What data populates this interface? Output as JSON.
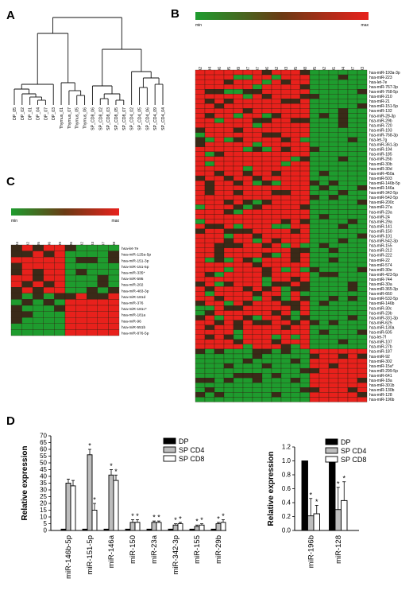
{
  "panel_labels": {
    "a": "A",
    "b": "B",
    "c": "C",
    "d": "D"
  },
  "dendrogram_leaves": [
    "DP_05",
    "DP_02",
    "DP_01",
    "DP_04",
    "DP_07",
    "DP_03",
    "Thymus_01",
    "Thymus_07",
    "Thymus_05",
    "Thymus_06",
    "SP_CD8_06",
    "SP_CD8_02",
    "SP_CD8_03",
    "SP_CD8_05",
    "SP_CD8_07",
    "SP_CD4_02",
    "SP_CD4_05",
    "SP_CD4_06",
    "SP_CD4_09",
    "SP_CD4_04"
  ],
  "scale_b": {
    "min": "min",
    "max": "max"
  },
  "scale_c": {
    "min": "min",
    "max": "max"
  },
  "heatmap_b_columns": [
    "SP_CD4_02",
    "SP_CD4_04",
    "SP_CD4_06",
    "SP_CD4_05",
    "SP_CD4_09",
    "SP_CD4_07",
    "SP_CD8_07",
    "SP_CD8_06",
    "SP_CD8_02",
    "SP_CD8_03",
    "SP_CD8_05",
    "SP_CD8_08",
    "DP_05",
    "DP_02",
    "DP_01",
    "DP_04",
    "DP_07",
    "DP_03"
  ],
  "heatmap_b_rows": [
    "hsa-miR-193a-3p",
    "hsa-miR-223",
    "hsa-let-7e",
    "hsa-miR-767-3p",
    "hsa-miR-768-5p",
    "hsa-miR-210",
    "hsa-miR-21",
    "hsa-miR-151-5p",
    "hsa-miR-132",
    "hsa-miR-28-3p",
    "hsa-miR-29b",
    "hsa-miR-720",
    "hsa-miR-193",
    "hsa-miR-768-3p",
    "hsa-let-7g",
    "hsa-miR-361-3p",
    "hsa-miR-194",
    "hsa-miR-185",
    "hsa-miR-26b",
    "hsa-miR-30b",
    "hsa-miR-30d",
    "hsa-miR-450a",
    "hsa-miR-503",
    "hsa-miR-146b-5p",
    "hsa-miR-146a",
    "hsa-miR-342-5p",
    "hsa-miR-542-5p",
    "hsa-miR-200c",
    "hsa-miR-27a",
    "hsa-miR-23a",
    "hsa-miR-24",
    "hsa-miR-29a",
    "hsa-miR-141",
    "hsa-miR-150",
    "hsa-miR-101",
    "hsa-miR-542-3p",
    "hsa-miR-155",
    "hsa-miR-212",
    "hsa-miR-222",
    "hsa-miR-22",
    "hsa-miR-574",
    "hsa-miR-30e",
    "hsa-miR-423-5p",
    "hsa-miR-744",
    "hsa-miR-30a",
    "hsa-miR-365-3p",
    "hsa-miR-660",
    "hsa-miR-532-5p",
    "hsa-miR-146b",
    "hsa-miR-30c",
    "hsa-miR-23b",
    "hsa-miR-331-3p",
    "hsa-miR-625",
    "hsa-miR-130a",
    "hsa-miR-505",
    "hsa-let-7f",
    "hsa-miR-107",
    "hsa-miR-27b",
    "hsa-miR-187",
    "hsa-miR-92",
    "hsa-miR-302",
    "hsa-miR-15a*",
    "hsa-miR-299-5p",
    "hsa-miR-641",
    "hsa-miR-18a",
    "hsa-miR-301b",
    "hsa-miR-130b",
    "hsa-miR-128",
    "hsa-miR-196b"
  ],
  "heatmap_c_columns": [
    "SP_CD4_04",
    "SP_CD4_02",
    "SP_CD4_05",
    "SP_CD4_06",
    "SP_CD4_09",
    "SP_CD8_06",
    "SP_CD8_02",
    "SP_CD8_03",
    "SP_CD8_07",
    "SP_CD8_08"
  ],
  "heatmap_c_rows": [
    "hsa-let-7e",
    "hsa-miR-125a-5p",
    "hsa-miR-151-3p",
    "hsa-miR-151-5p",
    "hsa-miR-335*",
    "hsa-miR-595",
    "hsa-miR-202",
    "hsa-miR-483-3p",
    "hsa-miR-181d",
    "hsa-miR-376",
    "hsa-miR-181c*",
    "hsa-miR-181a",
    "hsa-miR-96",
    "hsa-miR-551b",
    "hsa-miR-876-5p"
  ],
  "colors": {
    "red": "#e8211c",
    "green": "#1e9c2e",
    "dark": "#3a2a18",
    "black": "#000000"
  },
  "chart_data": [
    {
      "type": "bar",
      "panel": "D-left",
      "ylabel": "Relative expression",
      "ylim": [
        0,
        70
      ],
      "yticks": [
        "0",
        "5",
        "10",
        "15",
        "20",
        "25",
        "30",
        "35",
        "40",
        "45",
        "50",
        "55",
        "60",
        "65",
        "70"
      ],
      "categories": [
        "miR-146b-5p",
        "miR-151-5p",
        "miR-146a",
        "miR-150",
        "miR-23a",
        "miR-342-3p",
        "miR-155",
        "miR-29b"
      ],
      "legend_position": "top-right",
      "series": [
        {
          "name": "DP",
          "values": [
            1,
            1,
            1,
            1,
            1,
            1,
            1,
            1
          ],
          "errors": [
            0,
            0,
            0,
            0,
            0,
            0,
            0,
            0
          ]
        },
        {
          "name": "SP CD4",
          "values": [
            35,
            56,
            41,
            6,
            6,
            4,
            3,
            5
          ],
          "errors": [
            3,
            4,
            4,
            2,
            1,
            1,
            1,
            1
          ]
        },
        {
          "name": "SP CD8",
          "values": [
            33,
            15,
            37,
            6,
            6,
            5,
            4,
            6
          ],
          "errors": [
            4,
            5,
            4,
            2,
            1,
            1,
            1,
            2
          ]
        }
      ],
      "stars": [
        [
          "",
          "",
          ""
        ],
        [
          "",
          "*",
          "*"
        ],
        [
          "",
          "*",
          "*"
        ],
        [
          "",
          "*",
          "*"
        ],
        [
          "",
          "*",
          "*"
        ],
        [
          "",
          "*",
          "*"
        ],
        [
          "",
          "*",
          "*"
        ],
        [
          "",
          "*",
          "*"
        ]
      ]
    },
    {
      "type": "bar",
      "panel": "D-right",
      "ylabel": "Relative expression",
      "ylim": [
        0,
        1.2
      ],
      "yticks": [
        "0.0",
        "0.2",
        "0.4",
        "0.6",
        "0.8",
        "1.0",
        "1.2"
      ],
      "categories": [
        "miR-196b",
        "miR-128"
      ],
      "legend_position": "top-right",
      "series": [
        {
          "name": "DP",
          "values": [
            1.0,
            1.03
          ],
          "errors": [
            0,
            0
          ]
        },
        {
          "name": "SP CD4",
          "values": [
            0.21,
            0.3
          ],
          "errors": [
            0.25,
            0.32
          ]
        },
        {
          "name": "SP CD8",
          "values": [
            0.24,
            0.43
          ],
          "errors": [
            0.12,
            0.27
          ]
        }
      ],
      "stars": [
        [
          "",
          "*",
          "*"
        ],
        [
          "",
          "*",
          "*"
        ]
      ]
    }
  ]
}
